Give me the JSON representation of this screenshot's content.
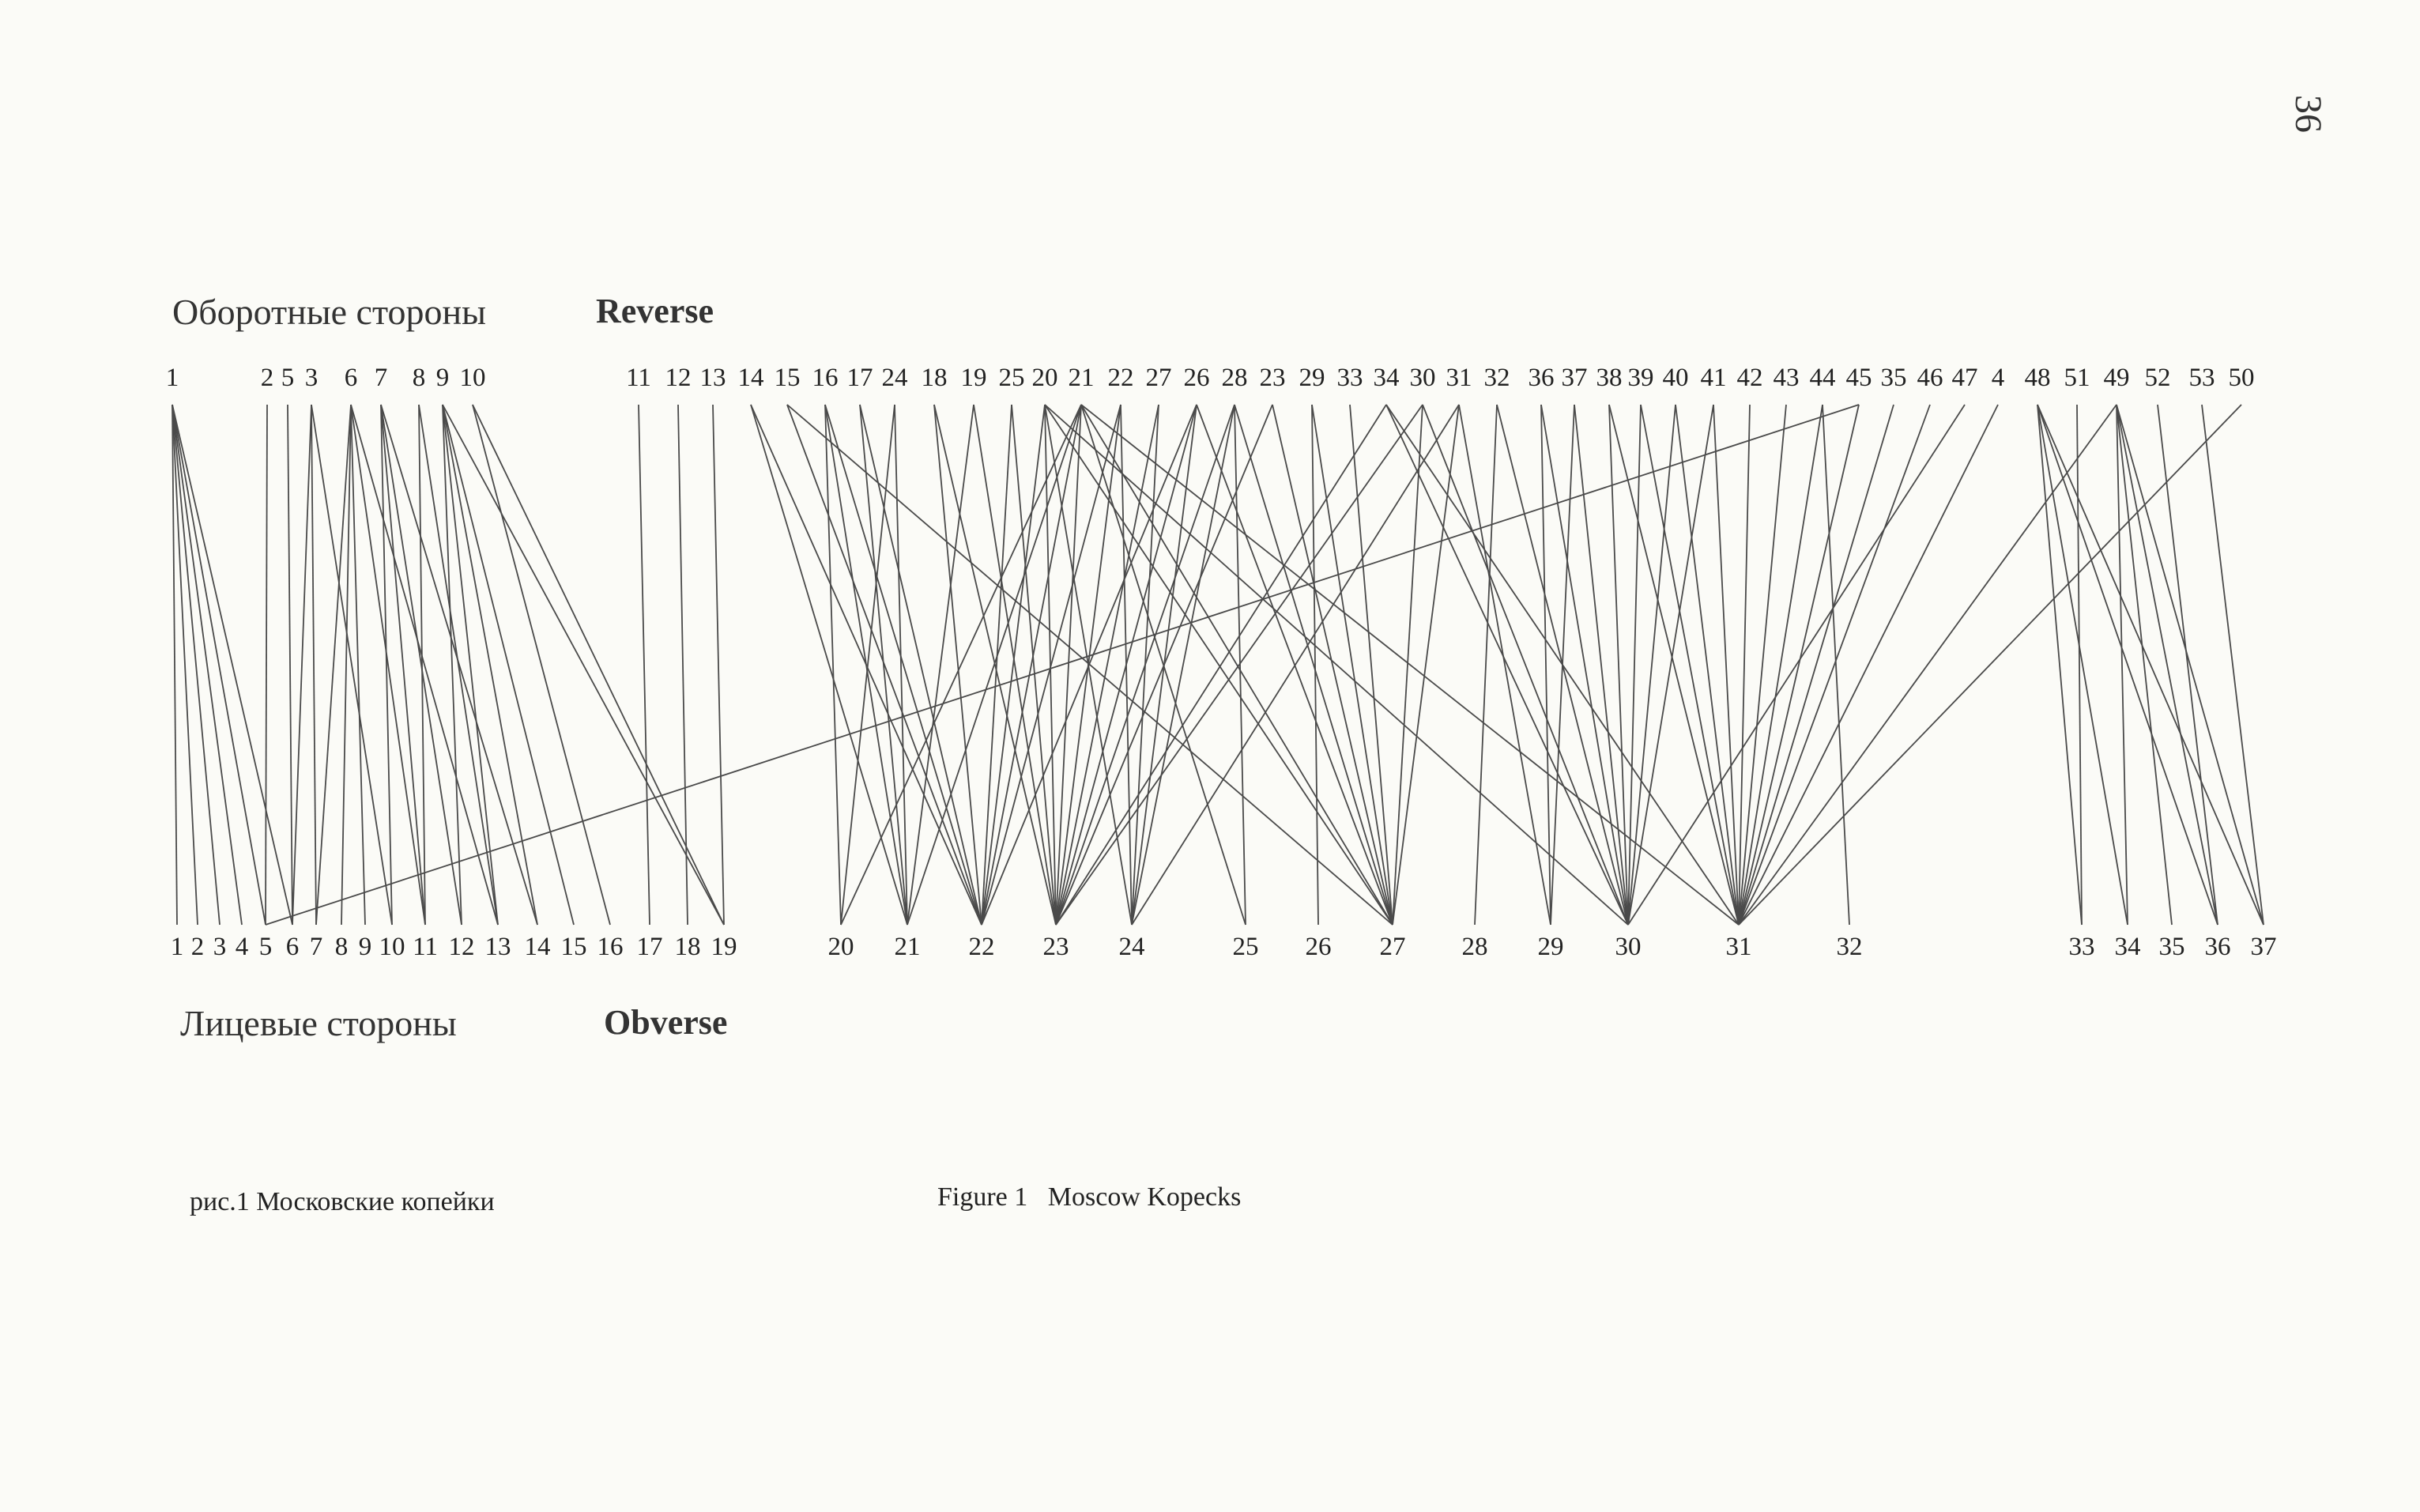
{
  "page_number": "36",
  "top_label_ru": "Оборотные стороны",
  "top_label_en": "Reverse",
  "bottom_label_ru": "Лицевые стороны",
  "bottom_label_en": "Obverse",
  "caption_ru": "рис.1 Московские копейки",
  "caption_en": "Figure 1   Moscow Kopecks",
  "reverse_nodes": [
    "1",
    "2",
    "5",
    "3",
    "6",
    "7",
    "8",
    "9",
    "10",
    "11",
    "12",
    "13",
    "14",
    "15",
    "16",
    "17",
    "24",
    "18",
    "19",
    "25",
    "20",
    "21",
    "22",
    "27",
    "26",
    "28",
    "23",
    "29",
    "33",
    "34",
    "30",
    "31",
    "32",
    "36",
    "37",
    "38",
    "39",
    "40",
    "41",
    "42",
    "43",
    "44",
    "45",
    "35",
    "46",
    "47",
    "4",
    "48",
    "51",
    "49",
    "52",
    "53",
    "50"
  ],
  "obverse_nodes": [
    "1",
    "2",
    "3",
    "4",
    "5",
    "6",
    "7",
    "8",
    "9",
    "10",
    "11",
    "12",
    "13",
    "14",
    "15",
    "16",
    "17",
    "18",
    "19",
    "20",
    "21",
    "22",
    "23",
    "24",
    "25",
    "26",
    "27",
    "28",
    "29",
    "30",
    "31",
    "32",
    "33",
    "34",
    "35",
    "36",
    "37"
  ],
  "links": [
    [
      "1",
      "1"
    ],
    [
      "1",
      "2"
    ],
    [
      "1",
      "3"
    ],
    [
      "1",
      "4"
    ],
    [
      "1",
      "5"
    ],
    [
      "1",
      "6"
    ],
    [
      "2",
      "5"
    ],
    [
      "5",
      "6"
    ],
    [
      "3",
      "6"
    ],
    [
      "3",
      "7"
    ],
    [
      "3",
      "10"
    ],
    [
      "6",
      "7"
    ],
    [
      "6",
      "8"
    ],
    [
      "6",
      "9"
    ],
    [
      "6",
      "11"
    ],
    [
      "6",
      "13"
    ],
    [
      "7",
      "10"
    ],
    [
      "7",
      "11"
    ],
    [
      "7",
      "12"
    ],
    [
      "7",
      "14"
    ],
    [
      "8",
      "11"
    ],
    [
      "8",
      "13"
    ],
    [
      "9",
      "12"
    ],
    [
      "9",
      "13"
    ],
    [
      "9",
      "14"
    ],
    [
      "9",
      "19"
    ],
    [
      "9",
      "15"
    ],
    [
      "10",
      "16"
    ],
    [
      "10",
      "19"
    ],
    [
      "11",
      "17"
    ],
    [
      "12",
      "18"
    ],
    [
      "13",
      "19"
    ],
    [
      "14",
      "21"
    ],
    [
      "14",
      "22"
    ],
    [
      "15",
      "22"
    ],
    [
      "15",
      "27"
    ],
    [
      "16",
      "20"
    ],
    [
      "16",
      "21"
    ],
    [
      "16",
      "22"
    ],
    [
      "17",
      "21"
    ],
    [
      "17",
      "22"
    ],
    [
      "24",
      "21"
    ],
    [
      "24",
      "20"
    ],
    [
      "18",
      "22"
    ],
    [
      "18",
      "23"
    ],
    [
      "19",
      "21"
    ],
    [
      "19",
      "23"
    ],
    [
      "25",
      "22"
    ],
    [
      "25",
      "23"
    ],
    [
      "20",
      "23"
    ],
    [
      "20",
      "22"
    ],
    [
      "20",
      "24"
    ],
    [
      "20",
      "27"
    ],
    [
      "20",
      "30"
    ],
    [
      "21",
      "20"
    ],
    [
      "21",
      "21"
    ],
    [
      "21",
      "22"
    ],
    [
      "21",
      "23"
    ],
    [
      "21",
      "25"
    ],
    [
      "21",
      "27"
    ],
    [
      "21",
      "31"
    ],
    [
      "22",
      "22"
    ],
    [
      "22",
      "23"
    ],
    [
      "22",
      "24"
    ],
    [
      "27",
      "23"
    ],
    [
      "27",
      "24"
    ],
    [
      "26",
      "22"
    ],
    [
      "26",
      "23"
    ],
    [
      "26",
      "24"
    ],
    [
      "26",
      "27"
    ],
    [
      "28",
      "23"
    ],
    [
      "28",
      "24"
    ],
    [
      "28",
      "25"
    ],
    [
      "28",
      "27"
    ],
    [
      "23",
      "23"
    ],
    [
      "23",
      "27"
    ],
    [
      "29",
      "26"
    ],
    [
      "29",
      "27"
    ],
    [
      "33",
      "27"
    ],
    [
      "34",
      "23"
    ],
    [
      "34",
      "30"
    ],
    [
      "34",
      "31"
    ],
    [
      "30",
      "23"
    ],
    [
      "30",
      "27"
    ],
    [
      "30",
      "30"
    ],
    [
      "31",
      "24"
    ],
    [
      "31",
      "27"
    ],
    [
      "31",
      "29"
    ],
    [
      "32",
      "28"
    ],
    [
      "32",
      "30"
    ],
    [
      "36",
      "29"
    ],
    [
      "36",
      "30"
    ],
    [
      "37",
      "29"
    ],
    [
      "37",
      "30"
    ],
    [
      "38",
      "30"
    ],
    [
      "38",
      "31"
    ],
    [
      "39",
      "30"
    ],
    [
      "39",
      "31"
    ],
    [
      "40",
      "30"
    ],
    [
      "40",
      "31"
    ],
    [
      "41",
      "31"
    ],
    [
      "41",
      "30"
    ],
    [
      "42",
      "31"
    ],
    [
      "43",
      "31"
    ],
    [
      "44",
      "31"
    ],
    [
      "44",
      "32"
    ],
    [
      "45",
      "31"
    ],
    [
      "45",
      "5"
    ],
    [
      "35",
      "31"
    ],
    [
      "46",
      "31"
    ],
    [
      "47",
      "30"
    ],
    [
      "4",
      "31"
    ],
    [
      "48",
      "33"
    ],
    [
      "48",
      "34"
    ],
    [
      "48",
      "36"
    ],
    [
      "48",
      "37"
    ],
    [
      "51",
      "33"
    ],
    [
      "49",
      "34"
    ],
    [
      "49",
      "35"
    ],
    [
      "49",
      "36"
    ],
    [
      "49",
      "37"
    ],
    [
      "49",
      "31"
    ],
    [
      "52",
      "36"
    ],
    [
      "53",
      "37"
    ],
    [
      "50",
      "31"
    ]
  ]
}
